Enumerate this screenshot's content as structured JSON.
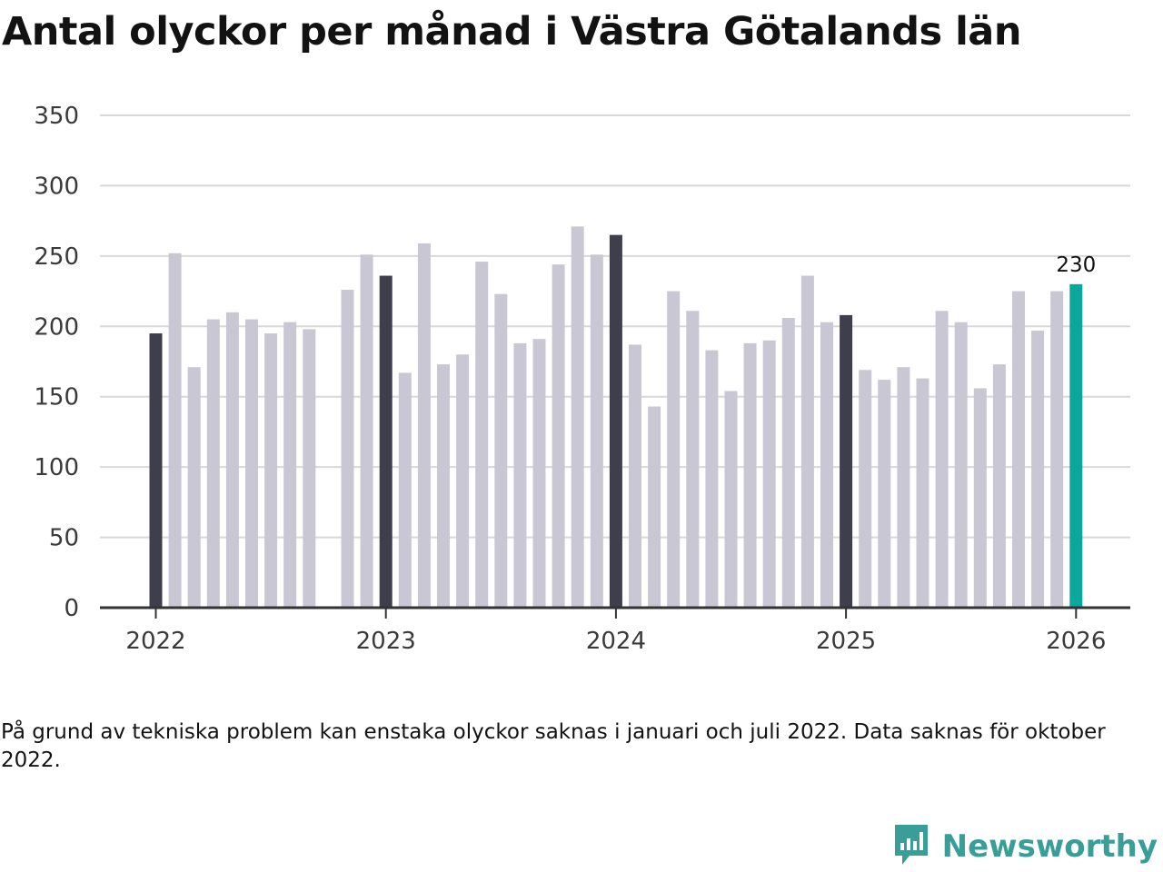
{
  "title": "Antal olyckor per månad i Västra Götalands län",
  "note": "På grund av tekniska problem kan enstaka olyckor saknas i januari och juli 2022. Data saknas för oktober 2022.",
  "brand": {
    "name": "Newsworthy",
    "icon": "newsworthy-logo-icon"
  },
  "colors": {
    "regular": "#c8c7d3",
    "january": "#3f3e4d",
    "latest": "#0ca79c",
    "grid": "#d8d8d8",
    "axis": "#333333"
  },
  "chart_data": {
    "type": "bar",
    "title": "Antal olyckor per månad i Västra Götalands län",
    "xlabel": "",
    "ylabel": "",
    "ylim": [
      0,
      350
    ],
    "yticks": [
      0,
      50,
      100,
      150,
      200,
      250,
      300,
      350
    ],
    "xticks": [
      "2022",
      "2023",
      "2024",
      "2025",
      "2026"
    ],
    "grid": true,
    "highlight_label": "230",
    "categories": [
      "2022-01",
      "2022-02",
      "2022-03",
      "2022-04",
      "2022-05",
      "2022-06",
      "2022-07",
      "2022-08",
      "2022-09",
      "2022-10",
      "2022-11",
      "2022-12",
      "2023-01",
      "2023-02",
      "2023-03",
      "2023-04",
      "2023-05",
      "2023-06",
      "2023-07",
      "2023-08",
      "2023-09",
      "2023-10",
      "2023-11",
      "2023-12",
      "2024-01",
      "2024-02",
      "2024-03",
      "2024-04",
      "2024-05",
      "2024-06",
      "2024-07",
      "2024-08",
      "2024-09",
      "2024-10",
      "2024-11",
      "2024-12",
      "2025-01",
      "2025-02",
      "2025-03",
      "2025-04",
      "2025-05",
      "2025-06",
      "2025-07",
      "2025-08",
      "2025-09",
      "2025-10",
      "2025-11",
      "2025-12",
      "2026-01"
    ],
    "values": [
      195,
      252,
      171,
      205,
      210,
      205,
      195,
      203,
      198,
      null,
      226,
      251,
      236,
      167,
      259,
      173,
      180,
      246,
      223,
      188,
      191,
      244,
      271,
      251,
      265,
      187,
      143,
      225,
      211,
      183,
      154,
      188,
      190,
      206,
      236,
      203,
      208,
      169,
      162,
      171,
      163,
      211,
      203,
      156,
      173,
      225,
      197,
      225,
      230
    ]
  }
}
